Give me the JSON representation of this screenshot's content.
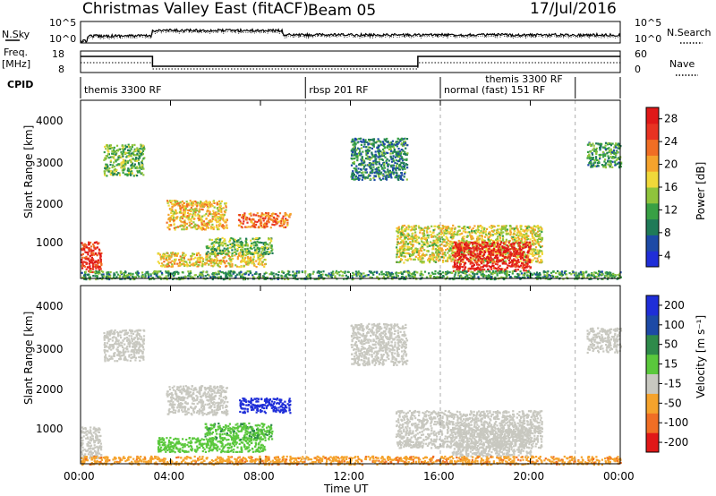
{
  "header": {
    "title": "Christmas Valley East (fitACF)",
    "beam": "Beam 05",
    "date": "17/Jul/2016"
  },
  "top_panels": {
    "nsky_label": "N.Sky",
    "nsky_ticks": [
      "10^5",
      "10^0"
    ],
    "nsearch_label": "N.Search",
    "freq_label_1": "Freq.",
    "freq_label_2": "[MHz]",
    "freq_ticks": [
      "18",
      "8"
    ],
    "nave_label": "Nave",
    "nave_ticks": [
      "60",
      "0"
    ],
    "cpid_label": "CPID",
    "cpid_segments": [
      {
        "label": "themis 3300 RF",
        "start_h": 0
      },
      {
        "label": "rbsp 201 RF",
        "start_h": 10
      },
      {
        "label": "normal (fast) 151 RF",
        "start_h": 16
      },
      {
        "label": "themis 3300 RF",
        "start_h": 22
      }
    ]
  },
  "x_axis": {
    "label": "Time UT",
    "ticks": [
      "00:00",
      "04:00",
      "08:00",
      "12:00",
      "16:00",
      "20:00",
      "00:00"
    ],
    "range_h": [
      0,
      24
    ]
  },
  "power_panel": {
    "ylabel": "Slant Range [km]",
    "yticks": [
      "4000",
      "3000",
      "2000",
      "1000"
    ],
    "colorbar_label": "Power [dB]",
    "colorbar_ticks": [
      "28",
      "24",
      "20",
      "16",
      "12",
      "8",
      "4"
    ],
    "colors": [
      "#1f2ed8",
      "#1d4aa6",
      "#1f7a58",
      "#38a044",
      "#8fc43c",
      "#f0d83a",
      "#f5a32c",
      "#f06e24",
      "#e83322",
      "#e01818"
    ]
  },
  "velocity_panel": {
    "ylabel": "Slant Range [km]",
    "yticks": [
      "4000",
      "3000",
      "2000",
      "1000"
    ],
    "colorbar_label": "Velocity [m s⁻¹]",
    "colorbar_ticks": [
      "200",
      "100",
      "50",
      "15",
      "-15",
      "-50",
      "-100",
      "-200"
    ],
    "colors": [
      "#e01818",
      "#f06e24",
      "#f5a32c",
      "#c8c8c0",
      "#5ac83c",
      "#2e8a4a",
      "#1d4aa6",
      "#1f2ed8"
    ]
  },
  "chart_data": [
    {
      "type": "heatmap",
      "title": "Christmas Valley East (fitACF)",
      "xlabel": "Time UT",
      "ylabel": "Slant Range [km]",
      "xlim": [
        0,
        24
      ],
      "ylim": [
        200,
        4500
      ],
      "colorbar": {
        "label": "Power [dB]",
        "range": [
          0,
          30
        ]
      },
      "scatter_regions": [
        {
          "t": [
            0.0,
            0.9
          ],
          "r": [
            350,
            1100
          ],
          "value": 26
        },
        {
          "t": [
            1.0,
            2.8
          ],
          "r": [
            2700,
            3450
          ],
          "value": 12
        },
        {
          "t": [
            3.8,
            6.5
          ],
          "r": [
            1400,
            2100
          ],
          "value": 18
        },
        {
          "t": [
            7.0,
            9.3
          ],
          "r": [
            1450,
            1800
          ],
          "value": 22
        },
        {
          "t": [
            3.4,
            8.2
          ],
          "r": [
            500,
            850
          ],
          "value": 17
        },
        {
          "t": [
            5.5,
            8.5
          ],
          "r": [
            800,
            1200
          ],
          "value": 12
        },
        {
          "t": [
            12.0,
            14.5
          ],
          "r": [
            2600,
            3600
          ],
          "value": 8
        },
        {
          "t": [
            14.0,
            20.5
          ],
          "r": [
            600,
            1500
          ],
          "value": 16
        },
        {
          "t": [
            16.5,
            20.0
          ],
          "r": [
            400,
            1100
          ],
          "value": 28
        },
        {
          "t": [
            22.5,
            24.0
          ],
          "r": [
            2900,
            3500
          ],
          "value": 10
        },
        {
          "t": [
            0.0,
            24.0
          ],
          "r": [
            200,
            400
          ],
          "value": 10
        }
      ]
    },
    {
      "type": "heatmap",
      "title": "",
      "xlabel": "Time UT",
      "ylabel": "Slant Range [km]",
      "xlim": [
        0,
        24
      ],
      "ylim": [
        200,
        4500
      ],
      "colorbar": {
        "label": "Velocity [m s⁻¹]",
        "ticks": [
          200,
          100,
          50,
          15,
          -15,
          -50,
          -100,
          -200
        ]
      },
      "scatter_regions": [
        {
          "t": [
            0.0,
            0.9
          ],
          "r": [
            350,
            1100
          ],
          "value": 0
        },
        {
          "t": [
            1.0,
            2.8
          ],
          "r": [
            2700,
            3450
          ],
          "value": 0
        },
        {
          "t": [
            3.8,
            6.5
          ],
          "r": [
            1400,
            2100
          ],
          "value": 0
        },
        {
          "t": [
            7.0,
            9.3
          ],
          "r": [
            1450,
            1800
          ],
          "value": 180
        },
        {
          "t": [
            3.4,
            8.2
          ],
          "r": [
            500,
            850
          ],
          "value": 30
        },
        {
          "t": [
            5.5,
            8.5
          ],
          "r": [
            800,
            1200
          ],
          "value": 40
        },
        {
          "t": [
            12.0,
            14.5
          ],
          "r": [
            2600,
            3600
          ],
          "value": 0
        },
        {
          "t": [
            14.0,
            20.5
          ],
          "r": [
            600,
            1500
          ],
          "value": 0
        },
        {
          "t": [
            16.5,
            20.0
          ],
          "r": [
            400,
            1100
          ],
          "value": 0
        },
        {
          "t": [
            22.5,
            24.0
          ],
          "r": [
            2900,
            3500
          ],
          "value": 0
        },
        {
          "t": [
            0.0,
            24.0
          ],
          "r": [
            200,
            400
          ],
          "value": -40
        }
      ]
    }
  ]
}
